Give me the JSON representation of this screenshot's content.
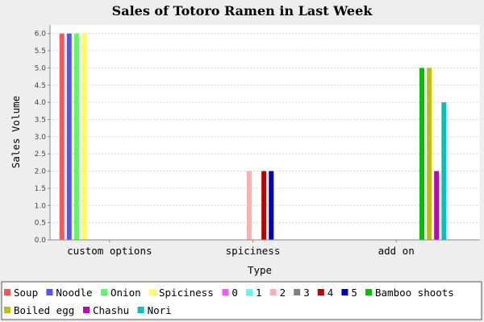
{
  "chart_data": {
    "type": "bar",
    "title": "Sales of Totoro Ramen in Last Week",
    "xlabel": "Type",
    "ylabel": "Sales Volume",
    "ylim": [
      0,
      6.25
    ],
    "yticks": [
      "0.0",
      "0.5",
      "1.0",
      "1.5",
      "2.0",
      "2.5",
      "3.0",
      "3.5",
      "4.0",
      "4.5",
      "5.0",
      "5.5",
      "6.0"
    ],
    "grid": true,
    "legend_position": "bottom",
    "categories": [
      "custom options",
      "spiciness",
      "add on"
    ],
    "series": [
      {
        "name": "Soup",
        "color": "#ff5555",
        "values": [
          6,
          0,
          0
        ]
      },
      {
        "name": "Noodle",
        "color": "#5555ff",
        "values": [
          6,
          0,
          0
        ]
      },
      {
        "name": "Onion",
        "color": "#55ff55",
        "values": [
          6,
          0,
          0
        ]
      },
      {
        "name": "Spiciness",
        "color": "#ffff55",
        "values": [
          6,
          0,
          0
        ]
      },
      {
        "name": "0",
        "color": "#ff55ff",
        "values": [
          0,
          0,
          0
        ]
      },
      {
        "name": "1",
        "color": "#55ffff",
        "values": [
          0,
          0,
          0
        ]
      },
      {
        "name": "2",
        "color": "#ffafaf",
        "values": [
          0,
          2,
          0
        ]
      },
      {
        "name": "3",
        "color": "#808080",
        "values": [
          0,
          0,
          0
        ]
      },
      {
        "name": "4",
        "color": "#c00000",
        "values": [
          0,
          2,
          0
        ]
      },
      {
        "name": "5",
        "color": "#0000c0",
        "values": [
          0,
          2,
          0
        ]
      },
      {
        "name": "Bamboo shoots",
        "color": "#00c000",
        "values": [
          0,
          0,
          5
        ]
      },
      {
        "name": "Boiled egg",
        "color": "#c0c000",
        "values": [
          0,
          0,
          5
        ]
      },
      {
        "name": "Chashu",
        "color": "#c000c0",
        "values": [
          0,
          0,
          2
        ]
      },
      {
        "name": "Nori",
        "color": "#00c0c0",
        "values": [
          0,
          0,
          4
        ]
      }
    ]
  }
}
